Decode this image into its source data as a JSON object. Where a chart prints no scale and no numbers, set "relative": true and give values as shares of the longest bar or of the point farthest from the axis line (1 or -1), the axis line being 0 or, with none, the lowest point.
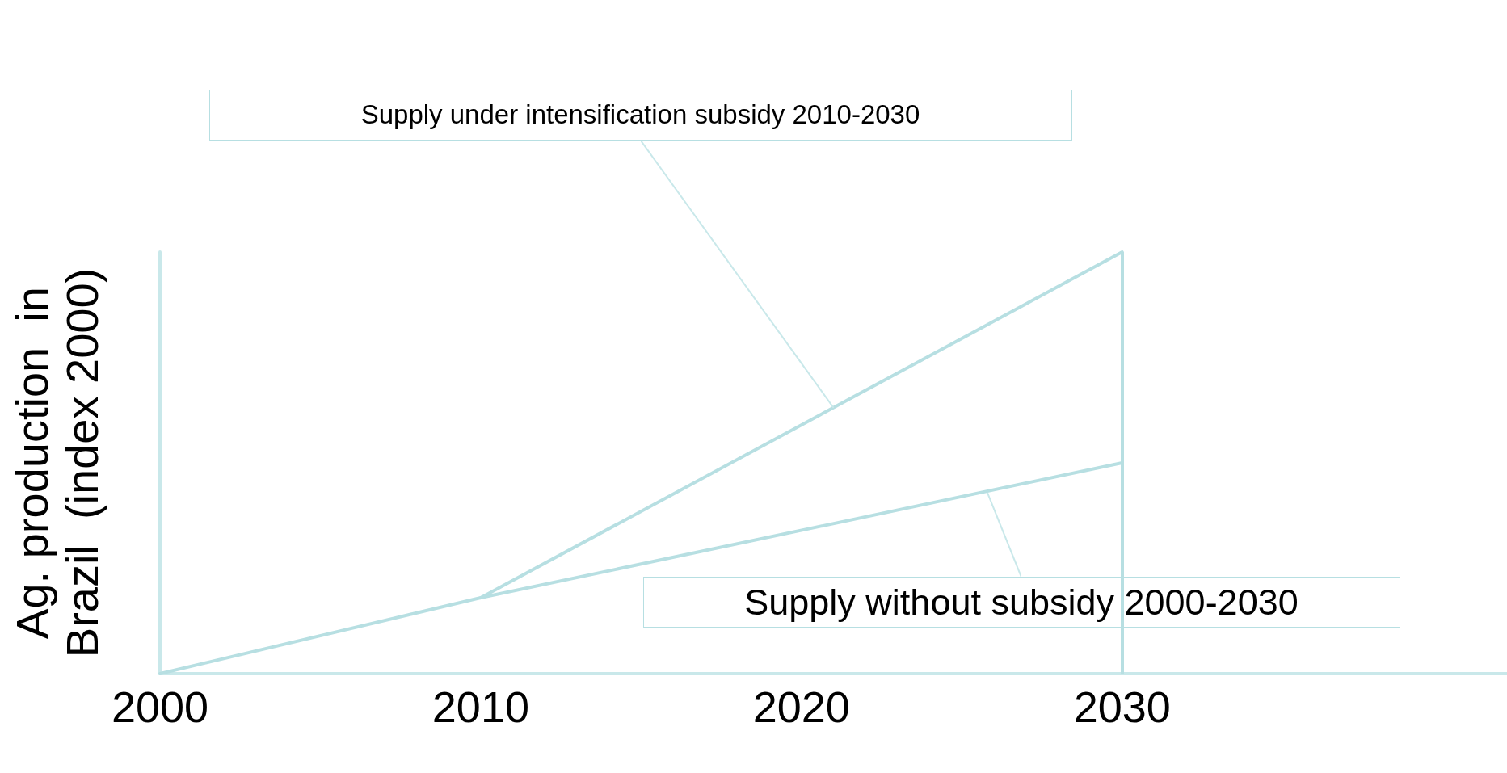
{
  "chart_data": {
    "type": "line",
    "relative": true,
    "ylabel": "Ag. production  in\nBrazil  (index 2000)",
    "xlim": [
      2000,
      2042
    ],
    "xticks": [
      2000,
      2010,
      2020,
      2030
    ],
    "series": [
      {
        "x": [
          2000,
          2010,
          2030
        ],
        "values": [
          0,
          0.18,
          0.5
        ],
        "color": "#b7dfe2"
      },
      {
        "x": [
          2010,
          2030
        ],
        "values": [
          0.18,
          1
        ],
        "color": "#b7dfe2"
      }
    ],
    "ref_lines": [
      {
        "axis": "x",
        "value": 2030,
        "color": "#b7dfe2"
      }
    ],
    "annotations": [
      {
        "text": "Supply under intensification subsidy 2010-2030",
        "x": 2021,
        "y": 0.63
      },
      {
        "text": "Supply without subsidy 2000-2030",
        "x": 2025.8,
        "y": 0.43
      }
    ],
    "grid": false,
    "marker": "none",
    "line_style": "solid"
  }
}
